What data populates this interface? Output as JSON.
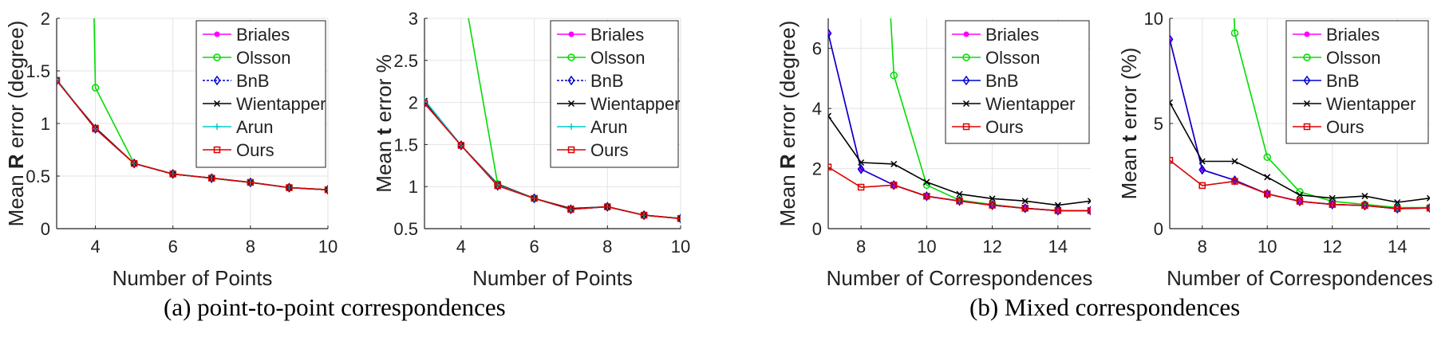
{
  "captions": {
    "a": "(a) point-to-point correspondences",
    "b": "(b) Mixed correspondences"
  },
  "chart_data": [
    {
      "type": "line",
      "ylabel": [
        "Mean ",
        "R",
        " error  (degree)"
      ],
      "xlabel": "Number of Points",
      "xlim": [
        3,
        10
      ],
      "ylim": [
        0,
        2
      ],
      "xticks": [
        4,
        6,
        8,
        10
      ],
      "yticks": [
        0,
        0.5,
        1,
        1.5,
        2
      ],
      "ytick_labels": [
        "0",
        "0.5",
        "1",
        "1.5",
        "2"
      ],
      "grid": true,
      "legend": "top-right",
      "series": [
        {
          "name": "Briales",
          "color": "#ff00ff",
          "marker": "dot",
          "x": [
            3,
            4,
            5,
            6,
            7,
            8,
            9,
            10
          ],
          "y": [
            1.41,
            0.95,
            0.62,
            0.52,
            0.48,
            0.44,
            0.39,
            0.37
          ]
        },
        {
          "name": "Olsson",
          "color": "#00dd00",
          "marker": "circle",
          "x": [
            4,
            5,
            6,
            7,
            8,
            9,
            10
          ],
          "y": [
            1.34,
            0.62,
            0.52,
            0.48,
            0.44,
            0.39,
            0.37
          ],
          "x_offscreen_start": [
            3.95,
            2.0
          ]
        },
        {
          "name": "BnB",
          "color": "#0000cc",
          "marker": "diamond",
          "dashed": true,
          "x": [
            3,
            4,
            5,
            6,
            7,
            8,
            9,
            10
          ],
          "y": [
            1.41,
            0.95,
            0.62,
            0.52,
            0.48,
            0.44,
            0.39,
            0.37
          ]
        },
        {
          "name": "Wientapper",
          "color": "#000000",
          "marker": "x",
          "x": [
            3,
            4,
            5,
            6,
            7,
            8,
            9,
            10
          ],
          "y": [
            1.41,
            0.96,
            0.62,
            0.52,
            0.48,
            0.44,
            0.39,
            0.37
          ]
        },
        {
          "name": "Arun",
          "color": "#00cccc",
          "marker": "plus",
          "x": [
            3,
            4,
            5,
            6,
            7,
            8,
            9,
            10
          ],
          "y": [
            1.42,
            0.95,
            0.62,
            0.52,
            0.48,
            0.44,
            0.39,
            0.37
          ]
        },
        {
          "name": "Ours",
          "color": "#dd0000",
          "marker": "square",
          "x": [
            3,
            4,
            5,
            6,
            7,
            8,
            9,
            10
          ],
          "y": [
            1.41,
            0.95,
            0.62,
            0.52,
            0.48,
            0.44,
            0.39,
            0.37
          ]
        }
      ]
    },
    {
      "type": "line",
      "ylabel": [
        "Mean ",
        "t",
        " error %"
      ],
      "xlabel": "Number of Points",
      "xlim": [
        3,
        10
      ],
      "ylim": [
        0.5,
        3
      ],
      "xticks": [
        4,
        6,
        8,
        10
      ],
      "yticks": [
        0.5,
        1,
        1.5,
        2,
        2.5,
        3
      ],
      "ytick_labels": [
        "0.5",
        "1",
        "1.5",
        "2",
        "2.5",
        "3"
      ],
      "grid": true,
      "legend": "top-right",
      "series": [
        {
          "name": "Briales",
          "color": "#ff00ff",
          "marker": "dot",
          "x": [
            3,
            4,
            5,
            6,
            7,
            8,
            9,
            10
          ],
          "y": [
            1.99,
            1.49,
            1.01,
            0.86,
            0.73,
            0.76,
            0.66,
            0.62
          ]
        },
        {
          "name": "Olsson",
          "color": "#00dd00",
          "marker": "circle",
          "x": [
            5,
            6,
            7,
            8,
            9,
            10
          ],
          "y": [
            1.03,
            0.86,
            0.73,
            0.76,
            0.66,
            0.62
          ],
          "x_offscreen_start": [
            4.05,
            3.0
          ]
        },
        {
          "name": "BnB",
          "color": "#0000cc",
          "marker": "diamond",
          "dashed": true,
          "x": [
            3,
            4,
            5,
            6,
            7,
            8,
            9,
            10
          ],
          "y": [
            2.0,
            1.49,
            1.01,
            0.86,
            0.73,
            0.76,
            0.66,
            0.62
          ]
        },
        {
          "name": "Wientapper",
          "color": "#000000",
          "marker": "x",
          "x": [
            3,
            4,
            5,
            6,
            7,
            8,
            9,
            10
          ],
          "y": [
            2.02,
            1.49,
            1.03,
            0.86,
            0.74,
            0.76,
            0.66,
            0.62
          ]
        },
        {
          "name": "Arun",
          "color": "#00cccc",
          "marker": "plus",
          "x": [
            3,
            4,
            5,
            6,
            7,
            8,
            9,
            10
          ],
          "y": [
            2.03,
            1.49,
            1.02,
            0.86,
            0.73,
            0.76,
            0.66,
            0.62
          ]
        },
        {
          "name": "Ours",
          "color": "#dd0000",
          "marker": "square",
          "x": [
            3,
            4,
            5,
            6,
            7,
            8,
            9,
            10
          ],
          "y": [
            1.99,
            1.49,
            1.01,
            0.86,
            0.73,
            0.76,
            0.66,
            0.62
          ]
        }
      ]
    },
    {
      "type": "line",
      "ylabel": [
        "Mean ",
        "R",
        " error  (degree)"
      ],
      "xlabel": "Number of Correspondences",
      "xlim": [
        7,
        15
      ],
      "ylim": [
        0,
        7
      ],
      "xticks": [
        8,
        10,
        12,
        14
      ],
      "yticks": [
        0,
        2,
        4,
        6
      ],
      "ytick_labels": [
        "0",
        "2",
        "4",
        "6"
      ],
      "grid": true,
      "legend": "top-right",
      "series": [
        {
          "name": "Briales",
          "color": "#ff00ff",
          "marker": "dot",
          "x": [
            7,
            8,
            9,
            10,
            11,
            12,
            13,
            14,
            15
          ],
          "y": [
            6.5,
            1.98,
            1.45,
            1.08,
            0.92,
            0.78,
            0.68,
            0.6,
            0.6
          ]
        },
        {
          "name": "Olsson",
          "color": "#00dd00",
          "marker": "circle",
          "x": [
            9,
            10,
            11,
            12,
            13,
            14,
            15
          ],
          "y": [
            5.1,
            1.45,
            0.95,
            0.8,
            0.68,
            0.6,
            0.6
          ],
          "x_offscreen_start": [
            8.85,
            7.0
          ]
        },
        {
          "name": "BnB",
          "color": "#0000cc",
          "marker": "diamond",
          "dashed": false,
          "x": [
            7,
            8,
            9,
            10,
            11,
            12,
            13,
            14,
            15
          ],
          "y": [
            6.5,
            1.98,
            1.45,
            1.08,
            0.92,
            0.78,
            0.68,
            0.6,
            0.6
          ]
        },
        {
          "name": "Wientapper",
          "color": "#000000",
          "marker": "x",
          "x": [
            7,
            8,
            9,
            10,
            11,
            12,
            13,
            14,
            15
          ],
          "y": [
            3.75,
            2.2,
            2.15,
            1.55,
            1.15,
            1.0,
            0.92,
            0.78,
            0.92
          ]
        },
        {
          "name": "Ours",
          "color": "#dd0000",
          "marker": "square",
          "x": [
            7,
            8,
            9,
            10,
            11,
            12,
            13,
            14,
            15
          ],
          "y": [
            2.05,
            1.38,
            1.45,
            1.08,
            0.92,
            0.78,
            0.68,
            0.6,
            0.6
          ]
        }
      ]
    },
    {
      "type": "line",
      "ylabel": [
        "Mean ",
        "t",
        " error (%)"
      ],
      "xlabel": "Number of Correspondences",
      "xlim": [
        7,
        15
      ],
      "ylim": [
        0,
        10
      ],
      "xticks": [
        8,
        10,
        12,
        14
      ],
      "yticks": [
        0,
        5,
        10
      ],
      "ytick_labels": [
        "0",
        "5",
        "10"
      ],
      "grid": true,
      "legend": "top-right",
      "series": [
        {
          "name": "Briales",
          "color": "#ff00ff",
          "marker": "dot",
          "x": [
            7,
            8,
            9,
            10,
            11,
            12,
            13,
            14,
            15
          ],
          "y": [
            9.0,
            2.8,
            2.3,
            1.65,
            1.3,
            1.15,
            1.1,
            0.95,
            0.98
          ]
        },
        {
          "name": "Olsson",
          "color": "#00dd00",
          "marker": "circle",
          "x": [
            9,
            10,
            11,
            12,
            13,
            14,
            15
          ],
          "y": [
            9.3,
            3.4,
            1.75,
            1.3,
            1.15,
            1.0,
            1.0
          ],
          "x_offscreen_start": [
            8.95,
            10.0
          ]
        },
        {
          "name": "BnB",
          "color": "#0000cc",
          "marker": "diamond",
          "dashed": false,
          "x": [
            7,
            8,
            9,
            10,
            11,
            12,
            13,
            14,
            15
          ],
          "y": [
            9.0,
            2.8,
            2.3,
            1.65,
            1.3,
            1.15,
            1.1,
            0.95,
            0.98
          ]
        },
        {
          "name": "Wientapper",
          "color": "#000000",
          "marker": "x",
          "x": [
            7,
            8,
            9,
            10,
            11,
            12,
            13,
            14,
            15
          ],
          "y": [
            6.0,
            3.2,
            3.2,
            2.45,
            1.6,
            1.45,
            1.55,
            1.25,
            1.45
          ]
        },
        {
          "name": "Ours",
          "color": "#dd0000",
          "marker": "square",
          "x": [
            7,
            8,
            9,
            10,
            11,
            12,
            13,
            14,
            15
          ],
          "y": [
            3.25,
            2.05,
            2.25,
            1.65,
            1.3,
            1.15,
            1.1,
            0.95,
            0.98
          ]
        }
      ]
    }
  ]
}
